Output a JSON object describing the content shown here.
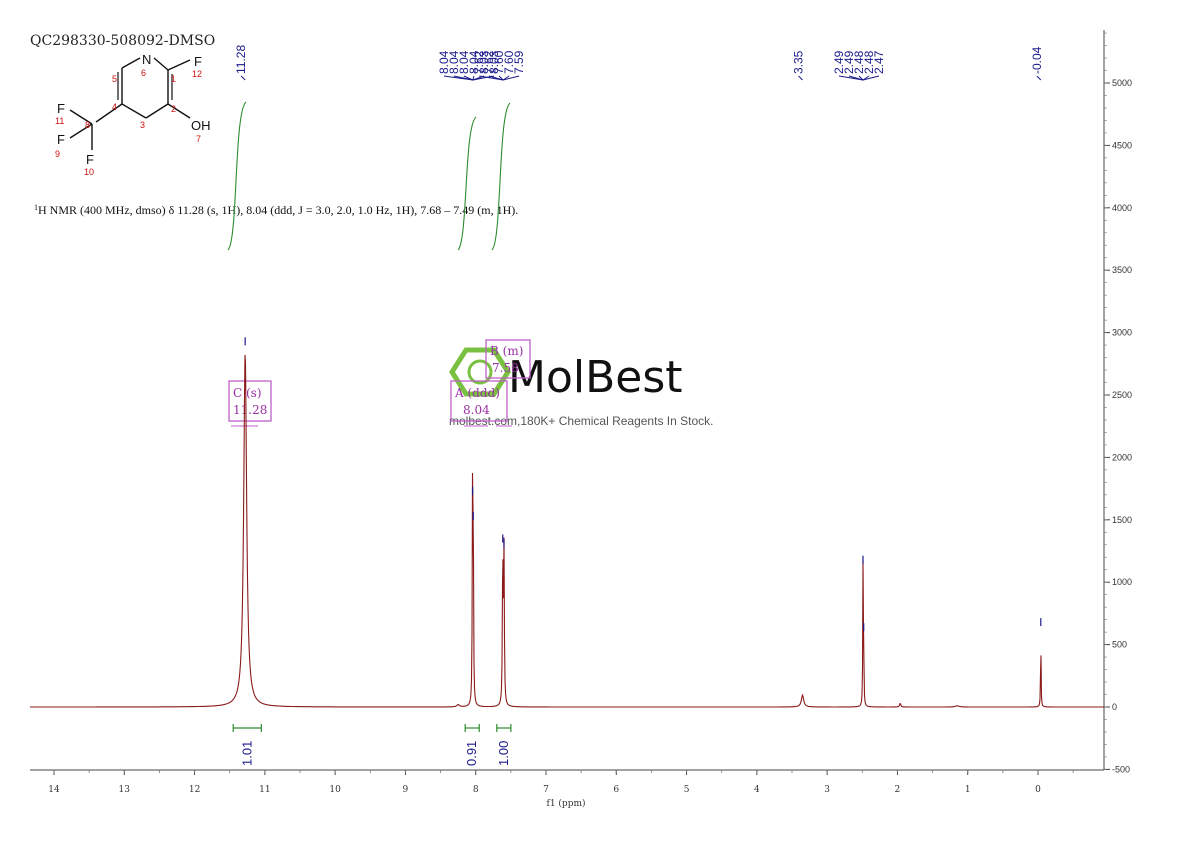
{
  "sample_id": "QC298330-508092-DMSO",
  "nmr_description": {
    "prefix_sup": "1",
    "text": "H NMR (400 MHz, dmso) δ 11.28 (s, 1H), 8.04 (ddd, J = 3.0, 2.0, 1.0 Hz, 1H), 7.68 – 7.49 (m, 1H)."
  },
  "structure": {
    "atoms": [
      {
        "symbol": "N",
        "num": "6"
      },
      {
        "symbol": "F",
        "num": "12"
      },
      {
        "symbol": "OH",
        "num": "7"
      },
      {
        "symbol": "F",
        "num": "11"
      },
      {
        "symbol": "F",
        "num": "9"
      },
      {
        "symbol": "F",
        "num": "10"
      }
    ],
    "ring_numbers": [
      "5",
      "1",
      "4",
      "2",
      "3",
      "8"
    ]
  },
  "peak_labels": {
    "group1": [
      "11.28"
    ],
    "group2": [
      "8.04",
      "8.04",
      "8.04",
      "8.04",
      "8.03",
      "8.03"
    ],
    "group3": [
      "7.62",
      "7.62",
      "7.60",
      "7.60",
      "7.59"
    ],
    "group4": [
      "3.35"
    ],
    "group5": [
      "2.49",
      "2.49",
      "2.48",
      "2.48",
      "2.47"
    ],
    "group6": [
      "-0.04"
    ]
  },
  "multiplet_boxes": [
    {
      "line1": "C (s)",
      "line2": "11.28"
    },
    {
      "line1": "A (ddd)",
      "line2": "8.04"
    },
    {
      "line1": "B (m)",
      "line2": "7.58"
    }
  ],
  "integrals": [
    "1.01",
    "0.91",
    "1.00"
  ],
  "watermark": {
    "brand": "MolBest",
    "tagline": "molbest.com,180K+ Chemical Reagents In Stock."
  },
  "colors": {
    "spectrum": "#8b1a1a",
    "peak_label": "#1a1a8c",
    "integral": "#2e8b2e",
    "multiplet_box": "#c060c8",
    "watermark_green": "#7ac142"
  },
  "chart_data": {
    "type": "line",
    "title": "QC298330-508092-DMSO",
    "xlabel": "f1 (ppm)",
    "ylabel": "",
    "x_reversed": true,
    "xlim": [
      14.4,
      -1.0
    ],
    "ylim": [
      -500,
      5400
    ],
    "x_ticks": [
      14,
      13,
      12,
      11,
      10,
      9,
      8,
      7,
      6,
      5,
      4,
      3,
      2,
      1,
      0
    ],
    "y_ticks": [
      -500,
      0,
      500,
      1000,
      1500,
      2000,
      2500,
      3000,
      3500,
      4000,
      4500,
      5000
    ],
    "peaks": [
      {
        "ppm": 11.28,
        "height": 2850,
        "width": 0.025
      },
      {
        "ppm": 8.045,
        "height": 1650,
        "width": 0.005
      },
      {
        "ppm": 8.035,
        "height": 1450,
        "width": 0.005
      },
      {
        "ppm": 7.615,
        "height": 1270,
        "width": 0.006
      },
      {
        "ppm": 7.598,
        "height": 1230,
        "width": 0.006
      },
      {
        "ppm": 3.35,
        "height": 95,
        "width": 0.02
      },
      {
        "ppm": 2.49,
        "height": 1100,
        "width": 0.004
      },
      {
        "ppm": 2.48,
        "height": 560,
        "width": 0.004
      },
      {
        "ppm": 8.25,
        "height": 18,
        "width": 0.02
      },
      {
        "ppm": 1.96,
        "height": 30,
        "width": 0.01
      },
      {
        "ppm": 1.15,
        "height": 10,
        "width": 0.03
      },
      {
        "ppm": -0.04,
        "height": 600,
        "width": 0.004
      }
    ],
    "peak_label_groups": [
      {
        "labels": [
          "11.28"
        ],
        "ppm_targets": [
          11.28
        ]
      },
      {
        "labels": [
          "8.04",
          "8.04",
          "8.04",
          "8.04",
          "8.03",
          "8.03"
        ],
        "ppm_targets": [
          8.04
        ]
      },
      {
        "labels": [
          "7.62",
          "7.62",
          "7.60",
          "7.60",
          "7.59"
        ],
        "ppm_targets": [
          7.61
        ]
      },
      {
        "labels": [
          "3.35"
        ],
        "ppm_targets": [
          3.35
        ]
      },
      {
        "labels": [
          "2.49",
          "2.49",
          "2.48",
          "2.48",
          "2.47"
        ],
        "ppm_targets": [
          2.49
        ]
      },
      {
        "labels": [
          "-0.04"
        ],
        "ppm_targets": [
          -0.04
        ]
      }
    ],
    "integrals": [
      {
        "from": 11.45,
        "to": 11.05,
        "value": "1.01"
      },
      {
        "from": 8.15,
        "to": 7.95,
        "value": "0.91"
      },
      {
        "from": 7.7,
        "to": 7.5,
        "value": "1.00"
      }
    ]
  }
}
